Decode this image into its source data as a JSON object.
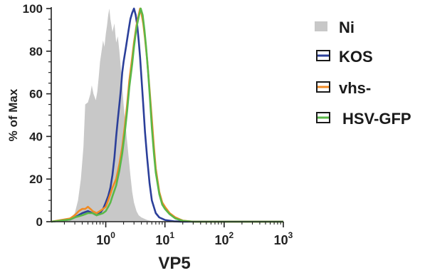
{
  "chart_data": {
    "type": "histogram-overlay",
    "xlabel": "VP5",
    "ylabel": "% of Max",
    "x_scale": "log",
    "xlim": [
      0.12,
      1000
    ],
    "ylim": [
      0,
      100
    ],
    "y_ticks": [
      "0",
      "20",
      "40",
      "60",
      "80",
      "100"
    ],
    "x_ticks": [
      {
        "value": 1,
        "base": "10",
        "exp": "0"
      },
      {
        "value": 10,
        "base": "10",
        "exp": "1"
      },
      {
        "value": 100,
        "base": "10",
        "exp": "2"
      },
      {
        "value": 1000,
        "base": "10",
        "exp": "3"
      }
    ],
    "legend_position": "right",
    "series": [
      {
        "name": "Ni",
        "style": "filled",
        "color": "#c8c8c8",
        "points": [
          [
            0.12,
            0
          ],
          [
            0.2,
            0.3
          ],
          [
            0.26,
            2
          ],
          [
            0.3,
            4
          ],
          [
            0.34,
            10
          ],
          [
            0.38,
            20
          ],
          [
            0.42,
            35
          ],
          [
            0.45,
            55
          ],
          [
            0.5,
            56
          ],
          [
            0.55,
            60
          ],
          [
            0.58,
            64
          ],
          [
            0.62,
            60
          ],
          [
            0.68,
            57
          ],
          [
            0.72,
            61
          ],
          [
            0.76,
            68
          ],
          [
            0.8,
            75
          ],
          [
            0.85,
            80
          ],
          [
            0.9,
            85
          ],
          [
            0.95,
            82
          ],
          [
            1.0,
            88
          ],
          [
            1.05,
            92
          ],
          [
            1.1,
            97
          ],
          [
            1.15,
            100
          ],
          [
            1.2,
            95
          ],
          [
            1.3,
            89
          ],
          [
            1.4,
            93
          ],
          [
            1.5,
            84
          ],
          [
            1.6,
            87
          ],
          [
            1.7,
            80
          ],
          [
            1.8,
            72
          ],
          [
            1.9,
            64
          ],
          [
            2.0,
            55
          ],
          [
            2.2,
            43
          ],
          [
            2.4,
            32
          ],
          [
            2.6,
            22
          ],
          [
            2.8,
            14
          ],
          [
            3.0,
            9
          ],
          [
            3.3,
            5
          ],
          [
            3.6,
            3
          ],
          [
            4.0,
            2
          ],
          [
            5.0,
            0.8
          ],
          [
            6.0,
            0.2
          ],
          [
            8.0,
            0
          ]
        ]
      },
      {
        "name": "KOS",
        "style": "line",
        "color": "#2b3f9a",
        "points": [
          [
            0.12,
            0
          ],
          [
            0.25,
            1
          ],
          [
            0.3,
            2
          ],
          [
            0.4,
            4
          ],
          [
            0.5,
            5
          ],
          [
            0.6,
            4
          ],
          [
            0.7,
            3
          ],
          [
            0.8,
            4
          ],
          [
            0.9,
            6
          ],
          [
            1.0,
            9
          ],
          [
            1.1,
            12
          ],
          [
            1.2,
            16
          ],
          [
            1.3,
            22
          ],
          [
            1.4,
            30
          ],
          [
            1.5,
            40
          ],
          [
            1.6,
            48
          ],
          [
            1.7,
            55
          ],
          [
            1.8,
            62
          ],
          [
            1.9,
            70
          ],
          [
            2.0,
            75
          ],
          [
            2.2,
            82
          ],
          [
            2.4,
            89
          ],
          [
            2.6,
            95
          ],
          [
            2.8,
            98
          ],
          [
            3.0,
            100
          ],
          [
            3.2,
            97
          ],
          [
            3.4,
            92
          ],
          [
            3.6,
            85
          ],
          [
            3.8,
            77
          ],
          [
            4.0,
            68
          ],
          [
            4.3,
            55
          ],
          [
            4.6,
            42
          ],
          [
            5.0,
            30
          ],
          [
            5.5,
            18
          ],
          [
            6.0,
            10
          ],
          [
            7.0,
            4
          ],
          [
            8.0,
            2
          ],
          [
            10,
            0.8
          ],
          [
            14,
            0.2
          ],
          [
            20,
            0
          ],
          [
            1000,
            0
          ]
        ]
      },
      {
        "name": "vhs-",
        "style": "line",
        "color": "#f08a24",
        "points": [
          [
            0.12,
            0
          ],
          [
            0.25,
            1.5
          ],
          [
            0.3,
            3
          ],
          [
            0.35,
            5
          ],
          [
            0.4,
            6
          ],
          [
            0.45,
            6
          ],
          [
            0.5,
            7
          ],
          [
            0.55,
            6
          ],
          [
            0.6,
            5
          ],
          [
            0.7,
            4
          ],
          [
            0.8,
            5
          ],
          [
            0.9,
            6
          ],
          [
            1.0,
            7
          ],
          [
            1.1,
            10
          ],
          [
            1.2,
            13
          ],
          [
            1.3,
            16
          ],
          [
            1.5,
            20
          ],
          [
            1.7,
            27
          ],
          [
            1.9,
            35
          ],
          [
            2.1,
            45
          ],
          [
            2.3,
            55
          ],
          [
            2.5,
            66
          ],
          [
            2.8,
            77
          ],
          [
            3.0,
            84
          ],
          [
            3.3,
            92
          ],
          [
            3.6,
            97
          ],
          [
            3.8,
            100
          ],
          [
            4.0,
            98
          ],
          [
            4.3,
            93
          ],
          [
            4.6,
            86
          ],
          [
            5.0,
            76
          ],
          [
            5.5,
            62
          ],
          [
            6.0,
            48
          ],
          [
            6.5,
            35
          ],
          [
            7.0,
            25
          ],
          [
            8.0,
            14
          ],
          [
            9.0,
            9
          ],
          [
            10,
            7
          ],
          [
            12,
            4
          ],
          [
            15,
            2
          ],
          [
            20,
            0.5
          ],
          [
            30,
            0
          ],
          [
            1000,
            0
          ]
        ]
      },
      {
        "name": "HSV-GFP",
        "style": "line",
        "color": "#5ab848",
        "points": [
          [
            0.12,
            0
          ],
          [
            0.25,
            1
          ],
          [
            0.3,
            2
          ],
          [
            0.4,
            3
          ],
          [
            0.5,
            4
          ],
          [
            0.6,
            4
          ],
          [
            0.7,
            3
          ],
          [
            0.8,
            3.5
          ],
          [
            0.9,
            4
          ],
          [
            1.0,
            5
          ],
          [
            1.1,
            7
          ],
          [
            1.2,
            9
          ],
          [
            1.3,
            12
          ],
          [
            1.5,
            17
          ],
          [
            1.7,
            24
          ],
          [
            1.9,
            32
          ],
          [
            2.1,
            42
          ],
          [
            2.3,
            52
          ],
          [
            2.5,
            63
          ],
          [
            2.8,
            74
          ],
          [
            3.0,
            82
          ],
          [
            3.3,
            91
          ],
          [
            3.6,
            96
          ],
          [
            3.9,
            100
          ],
          [
            4.2,
            97
          ],
          [
            4.5,
            90
          ],
          [
            4.8,
            82
          ],
          [
            5.2,
            70
          ],
          [
            5.6,
            57
          ],
          [
            6.0,
            44
          ],
          [
            6.5,
            32
          ],
          [
            7.0,
            23
          ],
          [
            8.0,
            13
          ],
          [
            9.0,
            8
          ],
          [
            10,
            6
          ],
          [
            12,
            3.5
          ],
          [
            15,
            1.5
          ],
          [
            20,
            0.4
          ],
          [
            30,
            0
          ],
          [
            1000,
            0
          ]
        ]
      }
    ]
  }
}
